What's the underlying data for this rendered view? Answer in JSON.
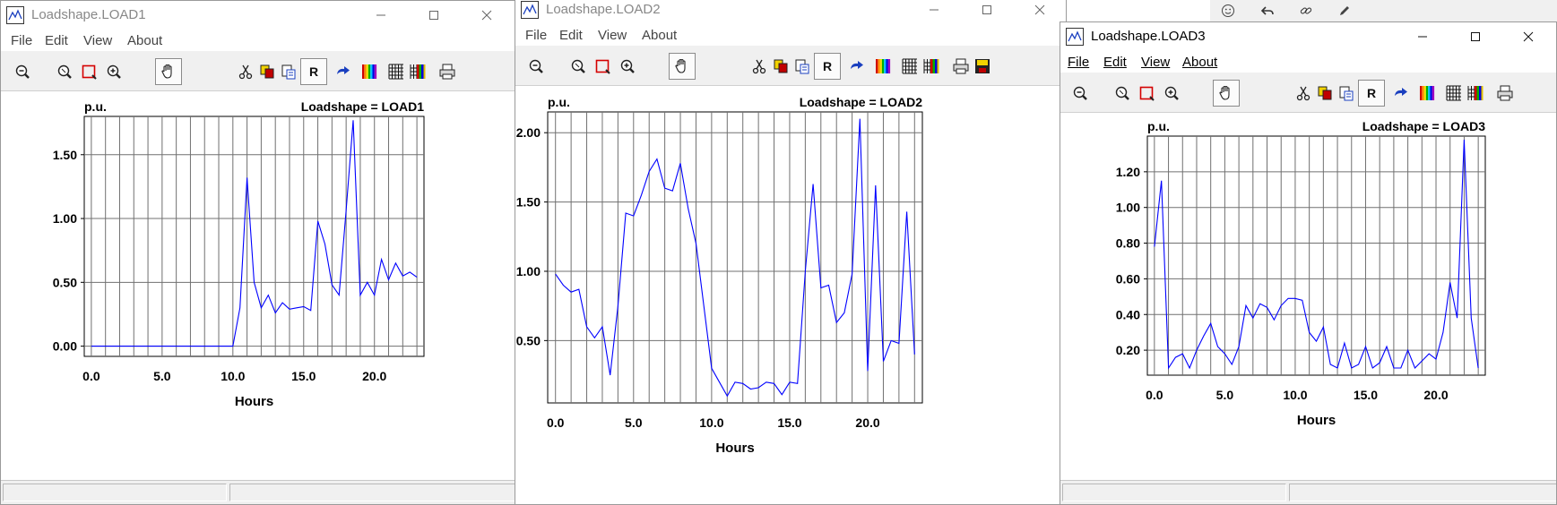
{
  "background_toolbar": {
    "icons": [
      "smiley-icon",
      "undo-icon",
      "link-icon",
      "pencil-icon"
    ]
  },
  "windows": [
    {
      "title": "Loadshape.LOAD1",
      "menu": [
        "File",
        "Edit",
        "View",
        "About"
      ],
      "chart_data": {
        "type": "line",
        "title": "Loadshape = LOAD1",
        "ylabel": "p.u.",
        "xlabel": "Hours",
        "xlim": [
          -0.5,
          23.5
        ],
        "ylim": [
          -0.08,
          1.8
        ],
        "xticks": [
          0,
          5,
          10,
          15,
          20
        ],
        "xtick_labels": [
          "0.0",
          "5.0",
          "10.0",
          "15.0",
          "20.0"
        ],
        "yticks": [
          0,
          0.5,
          1.0,
          1.5
        ],
        "ytick_labels": [
          "0.00",
          "0.50",
          "1.00",
          "1.50"
        ],
        "grid": true,
        "series_color": "#0000ff",
        "x": [
          0,
          0.5,
          1,
          1.5,
          2,
          2.5,
          3,
          3.5,
          4,
          4.5,
          5,
          5.5,
          6,
          6.5,
          7,
          7.5,
          8,
          8.5,
          9,
          9.5,
          10,
          10.5,
          11,
          11.5,
          12,
          12.5,
          13,
          13.5,
          14,
          14.5,
          15,
          15.5,
          16,
          16.5,
          17,
          17.5,
          18,
          18.5,
          19,
          19.5,
          20,
          20.5,
          21,
          21.5,
          22,
          22.5,
          23
        ],
        "y": [
          0,
          0,
          0,
          0,
          0,
          0,
          0,
          0,
          0,
          0,
          0,
          0,
          0,
          0,
          0,
          0,
          0,
          0,
          0,
          0,
          0,
          0.3,
          1.32,
          0.5,
          0.3,
          0.4,
          0.26,
          0.34,
          0.29,
          0.3,
          0.31,
          0.28,
          0.98,
          0.8,
          0.48,
          0.4,
          1.06,
          1.77,
          0.4,
          0.5,
          0.4,
          0.68,
          0.52,
          0.65,
          0.55,
          0.58,
          0.54
        ]
      }
    },
    {
      "title": "Loadshape.LOAD2",
      "menu": [
        "File",
        "Edit",
        "View",
        "About"
      ],
      "chart_data": {
        "type": "line",
        "title": "Loadshape = LOAD2",
        "ylabel": "p.u.",
        "xlabel": "Hours",
        "xlim": [
          -0.5,
          23.5
        ],
        "ylim": [
          0.05,
          2.15
        ],
        "xticks": [
          0,
          5,
          10,
          15,
          20
        ],
        "xtick_labels": [
          "0.0",
          "5.0",
          "10.0",
          "15.0",
          "20.0"
        ],
        "yticks": [
          0.5,
          1.0,
          1.5,
          2.0
        ],
        "ytick_labels": [
          "0.50",
          "1.00",
          "1.50",
          "2.00"
        ],
        "grid": true,
        "series_color": "#0000ff",
        "x": [
          0,
          0.5,
          1,
          1.5,
          2,
          2.5,
          3,
          3.5,
          4,
          4.5,
          5,
          5.5,
          6,
          6.5,
          7,
          7.5,
          8,
          8.5,
          9,
          9.5,
          10,
          10.5,
          11,
          11.5,
          12,
          12.5,
          13,
          13.5,
          14,
          14.5,
          15,
          15.5,
          16,
          16.5,
          17,
          17.5,
          18,
          18.5,
          19,
          19.5,
          20,
          20.5,
          21,
          21.5,
          22,
          22.5,
          23
        ],
        "y": [
          0.98,
          0.9,
          0.85,
          0.87,
          0.6,
          0.52,
          0.6,
          0.25,
          0.75,
          1.42,
          1.4,
          1.55,
          1.72,
          1.81,
          1.6,
          1.58,
          1.78,
          1.45,
          1.2,
          0.75,
          0.3,
          0.2,
          0.1,
          0.2,
          0.19,
          0.15,
          0.16,
          0.2,
          0.19,
          0.11,
          0.2,
          0.19,
          1.0,
          1.63,
          0.88,
          0.9,
          0.63,
          0.7,
          0.98,
          2.1,
          0.28,
          1.62,
          0.35,
          0.5,
          0.48,
          1.43,
          0.4
        ]
      }
    },
    {
      "title": "Loadshape.LOAD3",
      "menu": [
        "File",
        "Edit",
        "View",
        "About"
      ],
      "chart_data": {
        "type": "line",
        "title": "Loadshape = LOAD3",
        "ylabel": "p.u.",
        "xlabel": "Hours",
        "xlim": [
          -0.5,
          23.5
        ],
        "ylim": [
          0.06,
          1.4
        ],
        "xticks": [
          0,
          5,
          10,
          15,
          20
        ],
        "xtick_labels": [
          "0.0",
          "5.0",
          "10.0",
          "15.0",
          "20.0"
        ],
        "yticks": [
          0.2,
          0.4,
          0.6,
          0.8,
          1.0,
          1.2
        ],
        "ytick_labels": [
          "0.20",
          "0.40",
          "0.60",
          "0.80",
          "1.00",
          "1.20"
        ],
        "grid": true,
        "series_color": "#0000ff",
        "x": [
          0,
          0.5,
          1,
          1.5,
          2,
          2.5,
          3,
          3.5,
          4,
          4.5,
          5,
          5.5,
          6,
          6.5,
          7,
          7.5,
          8,
          8.5,
          9,
          9.5,
          10,
          10.5,
          11,
          11.5,
          12,
          12.5,
          13,
          13.5,
          14,
          14.5,
          15,
          15.5,
          16,
          16.5,
          17,
          17.5,
          18,
          18.5,
          19,
          19.5,
          20,
          20.5,
          21,
          21.5,
          22,
          22.5,
          23
        ],
        "y": [
          0.78,
          1.15,
          0.1,
          0.16,
          0.18,
          0.1,
          0.2,
          0.28,
          0.35,
          0.22,
          0.18,
          0.12,
          0.22,
          0.45,
          0.38,
          0.46,
          0.44,
          0.37,
          0.45,
          0.49,
          0.49,
          0.48,
          0.3,
          0.25,
          0.33,
          0.12,
          0.1,
          0.24,
          0.1,
          0.12,
          0.22,
          0.1,
          0.13,
          0.22,
          0.1,
          0.1,
          0.2,
          0.1,
          0.14,
          0.18,
          0.15,
          0.3,
          0.58,
          0.38,
          1.38,
          0.38,
          0.1
        ]
      }
    }
  ]
}
